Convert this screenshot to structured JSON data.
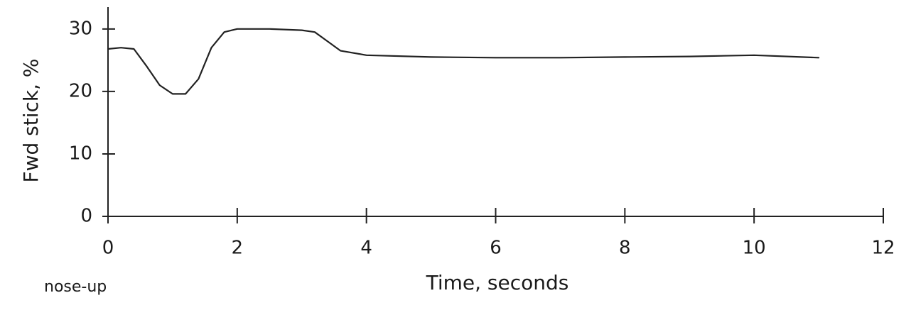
{
  "chart_data": {
    "type": "line",
    "x_label": "Time, seconds",
    "y_label": "Fwd stick, %",
    "annotation": "nose-up",
    "x": [
      0,
      0.2,
      0.4,
      0.6,
      0.8,
      1.0,
      1.2,
      1.4,
      1.6,
      1.8,
      2,
      2.5,
      3,
      3.2,
      3.4,
      3.6,
      4,
      5,
      6,
      7,
      8,
      9,
      10,
      11
    ],
    "series": [
      {
        "name": "Fwd stick",
        "color": "#222222",
        "values": [
          26.8,
          27,
          26.8,
          24,
          21,
          19.6,
          19.6,
          22,
          27,
          29.5,
          30,
          30,
          29.8,
          29.5,
          28,
          26.5,
          25.8,
          25.5,
          25.4,
          25.4,
          25.5,
          25.6,
          25.8,
          25.4
        ]
      }
    ],
    "xlim": [
      0,
      12
    ],
    "xticks": [
      0,
      2,
      4,
      6,
      8,
      10,
      12
    ],
    "ylim": [
      0,
      33.5
    ],
    "yticks": [
      0,
      10,
      20,
      30
    ],
    "grid": false
  }
}
